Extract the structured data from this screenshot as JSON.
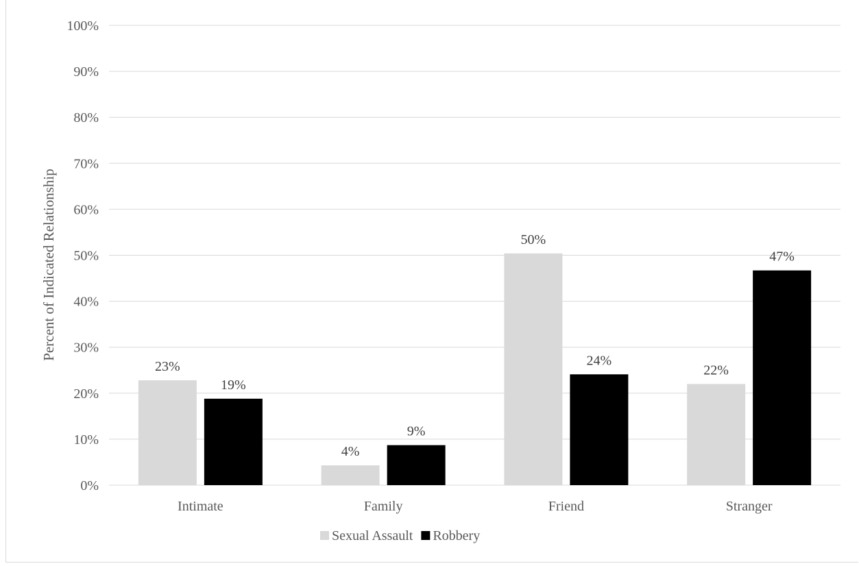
{
  "chart_data": {
    "type": "bar",
    "title": "",
    "xlabel": "",
    "ylabel": "Percent of Indicated Relationship",
    "categories": [
      "Intimate",
      "Family",
      "Friend",
      "Stranger"
    ],
    "series": [
      {
        "name": "Sexual Assault",
        "color": "#d9d9d9",
        "values": [
          23,
          4,
          50,
          22
        ],
        "labels": [
          "23%",
          "4%",
          "50%",
          "22%"
        ],
        "plotted": [
          22.8,
          4.3,
          50.4,
          22.0
        ]
      },
      {
        "name": "Robbery",
        "color": "#000000",
        "values": [
          19,
          9,
          24,
          47
        ],
        "labels": [
          "19%",
          "9%",
          "24%",
          "47%"
        ],
        "plotted": [
          18.8,
          8.7,
          24.1,
          46.7
        ]
      }
    ],
    "ylim": [
      0,
      100
    ],
    "yticks": [
      "0%",
      "10%",
      "20%",
      "30%",
      "40%",
      "50%",
      "60%",
      "70%",
      "80%",
      "90%",
      "100%"
    ],
    "grid": true,
    "legend_position": "bottom-center"
  }
}
